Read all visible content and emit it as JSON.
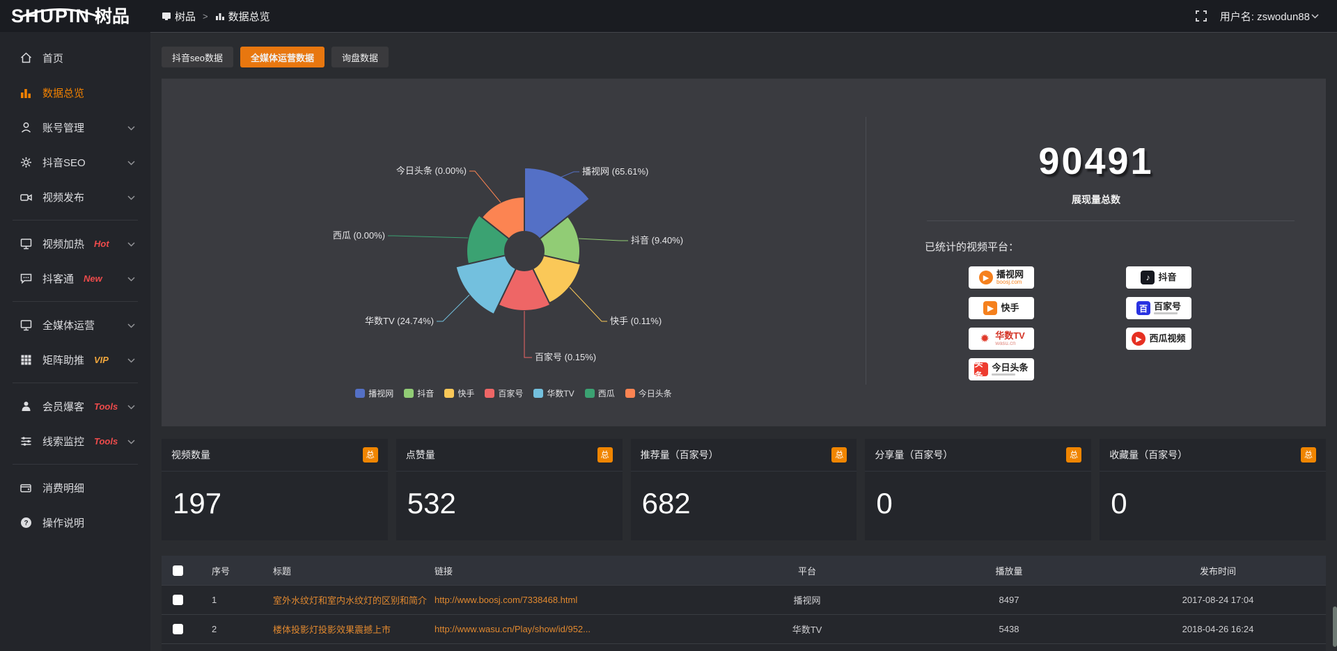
{
  "colors": {
    "accent_orange": "#e8770f",
    "badge_orange": "#f08500",
    "link_orange": "#e0882f",
    "hot_red": "#ee4b4b",
    "vip_yellow": "#f0a63c",
    "panel_bg": "#3a3b40",
    "card_bg": "#24262b",
    "sidebar_bg": "#23252a",
    "topbar_bg": "#1a1c21"
  },
  "topbar": {
    "logo_main": "SHUPIN",
    "logo_cn": "树品",
    "breadcrumb": {
      "root": "树品",
      "separator": ">",
      "current": "数据总览"
    },
    "username": "用户名: zswodun88"
  },
  "sidebar": {
    "items": [
      {
        "label": "首页",
        "icon": "home-icon"
      },
      {
        "label": "数据总览",
        "icon": "bar-chart-icon",
        "active": true
      },
      {
        "label": "账号管理",
        "icon": "user-icon",
        "chevron": true
      },
      {
        "label": "抖音SEO",
        "icon": "gear-icon",
        "chevron": true
      },
      {
        "label": "视频发布",
        "icon": "video-publish-icon",
        "chevron": true
      },
      {
        "divider": true
      },
      {
        "label": "视频加热",
        "icon": "monitor-icon",
        "badge": "Hot",
        "badge_color": "#ee4b4b",
        "chevron": true
      },
      {
        "label": "抖客通",
        "icon": "chat-icon",
        "badge": "New",
        "badge_color": "#ee4b4b",
        "chevron": true
      },
      {
        "divider": true
      },
      {
        "label": "全媒体运营",
        "icon": "screen-icon",
        "chevron": true
      },
      {
        "label": "矩阵助推",
        "icon": "grid-icon",
        "badge": "VIP",
        "badge_color": "#f0a63c",
        "chevron": true
      },
      {
        "divider": true
      },
      {
        "label": "会员爆客",
        "icon": "member-icon",
        "badge": "Tools",
        "badge_color": "#ee4b4b",
        "chevron": true
      },
      {
        "label": "线索监控",
        "icon": "sliders-icon",
        "badge": "Tools",
        "badge_color": "#ee4b4b",
        "chevron": true
      },
      {
        "divider": true
      },
      {
        "label": "消费明细",
        "icon": "wallet-icon"
      },
      {
        "label": "操作说明",
        "icon": "question-icon"
      }
    ]
  },
  "tabs": [
    {
      "label": "抖音seo数据",
      "active": false
    },
    {
      "label": "全媒体运营数据",
      "active": true
    },
    {
      "label": "询盘数据",
      "active": false
    }
  ],
  "chart_data": {
    "type": "pie",
    "variant": "nightingale-rose",
    "legend_position": "bottom",
    "items": [
      {
        "name": "播视网",
        "percent": 65.61,
        "label": "播视网 (65.61%)",
        "color": "#5470c6"
      },
      {
        "name": "抖音",
        "percent": 9.4,
        "label": "抖音 (9.40%)",
        "color": "#91cc75"
      },
      {
        "name": "快手",
        "percent": 0.11,
        "label": "快手 (0.11%)",
        "color": "#fac858"
      },
      {
        "name": "百家号",
        "percent": 0.15,
        "label": "百家号 (0.15%)",
        "color": "#ee6666"
      },
      {
        "name": "华数TV",
        "percent": 24.74,
        "label": "华数TV (24.74%)",
        "color": "#73c0de"
      },
      {
        "name": "西瓜",
        "percent": 0.0,
        "label": "西瓜 (0.00%)",
        "color": "#3ba272"
      },
      {
        "name": "今日头条",
        "percent": 0.0,
        "label": "今日头条 (0.00%)",
        "color": "#fc8452"
      }
    ]
  },
  "summary": {
    "total_value": "90491",
    "total_label": "展现量总数",
    "platforms_title": "已统计的视频平台：",
    "platform_columns": {
      "left": [
        {
          "name": "播视网",
          "sub": "boosj.com",
          "logo": "boosj-logo",
          "logo_char": "▶",
          "logo_color": "#f5801d",
          "shape": "circle",
          "name_color": "#222",
          "sub_color": "#f5801d"
        },
        {
          "name": "快手",
          "logo": "kuaishou-logo",
          "logo_char": "▶",
          "logo_color": "#f5801d",
          "shape": "square",
          "name_color": "#222"
        },
        {
          "name": "华数TV",
          "sub": "wasu.cn",
          "logo": "wasu-logo",
          "logo_char": "✹",
          "logo_color": "#e03a2a",
          "shape": "none",
          "name_color": "#d43527",
          "sub_color": "#e08a80"
        },
        {
          "name": "今日头条",
          "logo": "toutiao-logo",
          "logo_char": "头条",
          "logo_color": "#ed3b2f",
          "shape": "square",
          "name_color": "#222",
          "sub_bar": true
        }
      ],
      "right": [
        {
          "name": "抖音",
          "logo": "douyin-logo",
          "logo_char": "♪",
          "logo_color": "#16181f",
          "shape": "square",
          "name_color": "#222"
        },
        {
          "name": "百家号",
          "logo": "baijiahao-logo",
          "logo_char": "百",
          "logo_color": "#2932e1",
          "shape": "square",
          "name_color": "#222",
          "sub_bar": true
        },
        {
          "name": "西瓜视频",
          "logo": "xigua-logo",
          "logo_char": "▶",
          "logo_color": "#e63022",
          "shape": "circle",
          "name_color": "#222"
        }
      ]
    }
  },
  "stat_cards": {
    "badge": "总",
    "cards": [
      {
        "title": "视频数量",
        "value": "197"
      },
      {
        "title": "点赞量",
        "value": "532"
      },
      {
        "title": "推荐量（百家号）",
        "value": "682"
      },
      {
        "title": "分享量（百家号）",
        "value": "0"
      },
      {
        "title": "收藏量（百家号）",
        "value": "0"
      }
    ]
  },
  "table": {
    "headers": [
      "序号",
      "标题",
      "链接",
      "平台",
      "播放量",
      "发布时间"
    ],
    "rows": [
      {
        "no": "1",
        "title": "室外水纹灯和室内水纹灯的区别和简介",
        "link": "http://www.boosj.com/7338468.html",
        "platform": "播视网",
        "plays": "8497",
        "time": "2017-08-24 17:04"
      },
      {
        "no": "2",
        "title": "楼体投影灯投影效果震撼上市",
        "link": "http://www.wasu.cn/Play/show/id/952...",
        "platform": "华数TV",
        "plays": "5438",
        "time": "2018-04-26 16:24"
      }
    ]
  }
}
